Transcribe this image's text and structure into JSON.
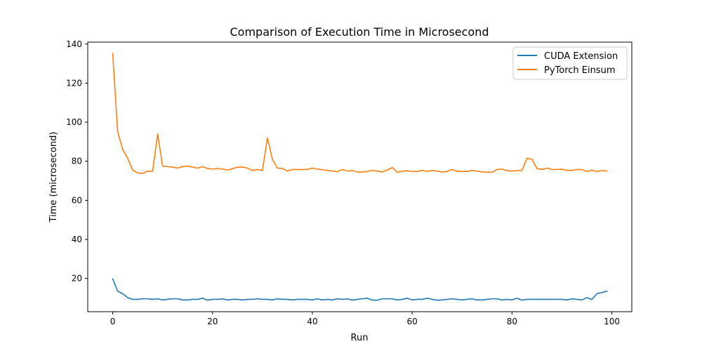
{
  "chart_data": {
    "type": "line",
    "title": "Comparison of Execution Time in Microsecond",
    "xlabel": "Run",
    "ylabel": "Time (microsecond)",
    "xlim": [
      -5,
      104
    ],
    "ylim": [
      3,
      141
    ],
    "xticks": [
      0,
      20,
      40,
      60,
      80,
      100
    ],
    "yticks": [
      20,
      40,
      60,
      80,
      100,
      120,
      140
    ],
    "grid": false,
    "legend": "top-right",
    "x": [
      0,
      1,
      2,
      3,
      4,
      5,
      6,
      7,
      8,
      9,
      10,
      11,
      12,
      13,
      14,
      15,
      16,
      17,
      18,
      19,
      20,
      21,
      22,
      23,
      24,
      25,
      26,
      27,
      28,
      29,
      30,
      31,
      32,
      33,
      34,
      35,
      36,
      37,
      38,
      39,
      40,
      41,
      42,
      43,
      44,
      45,
      46,
      47,
      48,
      49,
      50,
      51,
      52,
      53,
      54,
      55,
      56,
      57,
      58,
      59,
      60,
      61,
      62,
      63,
      64,
      65,
      66,
      67,
      68,
      69,
      70,
      71,
      72,
      73,
      74,
      75,
      76,
      77,
      78,
      79,
      80,
      81,
      82,
      83,
      84,
      85,
      86,
      87,
      88,
      89,
      90,
      91,
      92,
      93,
      94,
      95,
      96,
      97,
      98,
      99
    ],
    "series": [
      {
        "name": "CUDA Extension",
        "color": "#1f77b4",
        "values": [
          19.8,
          13.5,
          12.2,
          10.2,
          9.3,
          9.3,
          9.6,
          9.6,
          9.3,
          9.6,
          9.0,
          9.3,
          9.6,
          9.6,
          9.0,
          9.0,
          9.3,
          9.3,
          9.9,
          8.9,
          9.3,
          9.3,
          9.6,
          9.0,
          9.3,
          9.3,
          9.0,
          9.3,
          9.3,
          9.6,
          9.3,
          9.3,
          9.0,
          9.6,
          9.3,
          9.3,
          9.0,
          9.3,
          9.3,
          9.3,
          9.0,
          9.6,
          9.0,
          9.3,
          9.0,
          9.6,
          9.3,
          9.6,
          8.9,
          9.3,
          9.6,
          9.9,
          8.9,
          8.9,
          9.6,
          9.6,
          9.6,
          9.0,
          9.3,
          9.9,
          9.0,
          9.3,
          9.3,
          9.9,
          9.3,
          8.9,
          9.0,
          9.3,
          9.6,
          9.3,
          9.0,
          9.3,
          9.6,
          9.0,
          9.0,
          9.3,
          9.6,
          9.6,
          9.0,
          9.3,
          9.0,
          9.9,
          8.9,
          9.3,
          9.3,
          9.3,
          9.3,
          9.3,
          9.3,
          9.3,
          9.3,
          9.0,
          9.6,
          9.3,
          9.0,
          10.2,
          9.3,
          12.2,
          12.8,
          13.5
        ]
      },
      {
        "name": "PyTorch Einsum",
        "color": "#ff7f0e",
        "values": [
          135.2,
          95.0,
          86.0,
          81.5,
          75.5,
          74.0,
          73.8,
          75.0,
          74.8,
          94.0,
          77.5,
          77.3,
          77.0,
          76.5,
          77.3,
          77.5,
          77.0,
          76.5,
          77.2,
          76.3,
          76.0,
          76.3,
          76.0,
          75.5,
          76.2,
          77.0,
          77.0,
          76.5,
          75.3,
          75.8,
          75.3,
          92.0,
          81.0,
          76.5,
          76.3,
          75.0,
          75.8,
          75.8,
          75.8,
          75.8,
          76.5,
          76.0,
          75.7,
          75.3,
          75.0,
          74.7,
          75.8,
          75.0,
          75.2,
          74.5,
          74.5,
          74.8,
          75.3,
          75.0,
          74.5,
          75.5,
          76.8,
          74.5,
          74.8,
          75.2,
          74.7,
          74.8,
          75.3,
          74.8,
          75.3,
          75.0,
          74.5,
          74.8,
          75.8,
          74.8,
          74.8,
          74.8,
          75.3,
          75.0,
          74.5,
          74.5,
          74.3,
          75.8,
          76.0,
          75.2,
          75.0,
          75.2,
          75.3,
          81.5,
          81.0,
          76.3,
          75.8,
          76.5,
          75.8,
          75.8,
          76.0,
          75.3,
          75.3,
          75.8,
          75.8,
          74.7,
          75.5,
          74.7,
          75.2,
          75.0
        ]
      }
    ]
  }
}
